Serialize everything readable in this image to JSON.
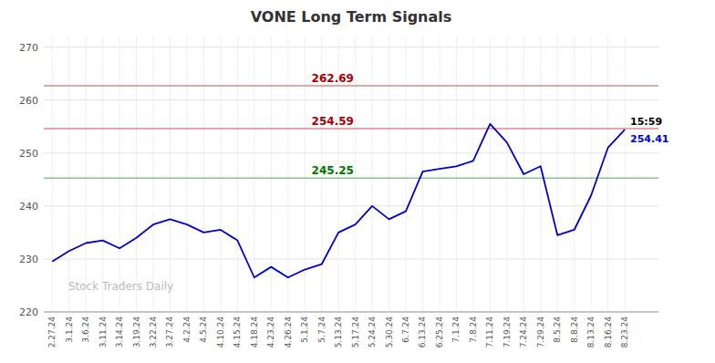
{
  "chart_data": {
    "type": "line",
    "title": "VONE Long Term Signals",
    "categories": [
      "2.27.24",
      "3.1.24",
      "3.6.24",
      "3.11.24",
      "3.14.24",
      "3.19.24",
      "3.22.24",
      "3.27.24",
      "4.2.24",
      "4.5.24",
      "4.10.24",
      "4.15.24",
      "4.18.24",
      "4.23.24",
      "4.26.24",
      "5.1.24",
      "5.7.24",
      "5.13.24",
      "5.17.24",
      "5.24.24",
      "5.30.24",
      "6.7.24",
      "6.13.24",
      "6.25.24",
      "7.1.24",
      "7.8.24",
      "7.11.24",
      "7.19.24",
      "7.24.24",
      "7.29.24",
      "8.5.24",
      "8.8.24",
      "8.13.24",
      "8.16.24",
      "8.23.24"
    ],
    "values": [
      229.5,
      231.5,
      233.0,
      233.5,
      232.0,
      234.0,
      236.5,
      237.5,
      236.5,
      235.0,
      235.5,
      233.5,
      226.5,
      228.5,
      226.5,
      228.0,
      229.0,
      235.0,
      236.5,
      240.0,
      237.5,
      239.0,
      246.5,
      247.0,
      247.5,
      248.5,
      255.5,
      252.0,
      246.0,
      247.5,
      234.5,
      235.5,
      242.0,
      251.0,
      254.41
    ],
    "color": "#0000cc",
    "ylim": [
      220,
      272
    ],
    "yticks": [
      220,
      230,
      240,
      250,
      260,
      270
    ],
    "grid": true,
    "annotations": [
      {
        "text": "262.69",
        "y": 262.69,
        "color": "#aa0000"
      },
      {
        "text": "254.59",
        "y": 254.59,
        "color": "#aa0000"
      },
      {
        "text": "245.25",
        "y": 245.25,
        "color": "#007700"
      },
      {
        "text": "15:59",
        "x": "8.23.24",
        "y": 254.41,
        "color": "#000000"
      },
      {
        "text": "254.41",
        "x": "8.23.24",
        "y": 254.41,
        "color": "#0000cc"
      },
      {
        "text": "Stock Traders Daily",
        "color": "#bbbbbb"
      }
    ]
  }
}
